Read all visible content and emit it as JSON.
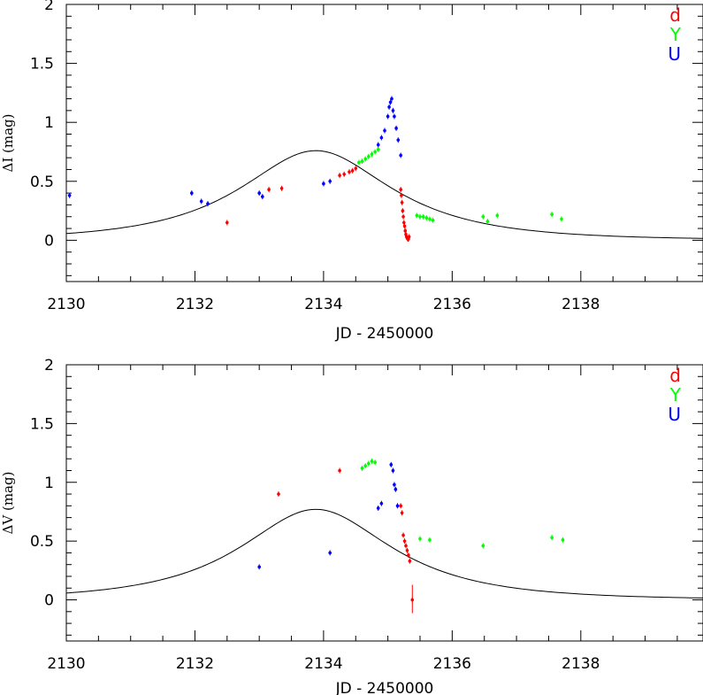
{
  "colors": {
    "d": "#ff0000",
    "Y": "#00ff00",
    "U": "#0000ff",
    "model": "#000000"
  },
  "chart_data": [
    {
      "type": "scatter",
      "xlabel": "JD - 2450000",
      "ylabel": "ΔI (mag)",
      "xlim": [
        2130,
        2139.9
      ],
      "ylim": [
        -0.35,
        2
      ],
      "xticks": [
        "2130",
        "2132",
        "2134",
        "2136",
        "2138"
      ],
      "yticks": [
        "0",
        "0.5",
        "1",
        "1.5",
        "2"
      ],
      "legend": {
        "position": "top-right",
        "entries": [
          "d",
          "Y",
          "U"
        ]
      },
      "model_curve": {
        "peak_x": 2133.88,
        "peak_y": 0.76,
        "tE": 2.0,
        "u0": 0.66
      },
      "series": [
        {
          "name": "d",
          "points": [
            [
              2132.5,
              0.15
            ],
            [
              2133.15,
              0.43
            ],
            [
              2133.35,
              0.44
            ],
            [
              2134.25,
              0.55
            ],
            [
              2134.32,
              0.56
            ],
            [
              2134.4,
              0.58
            ],
            [
              2134.45,
              0.59
            ],
            [
              2134.5,
              0.61
            ],
            [
              2135.2,
              0.43
            ],
            [
              2135.21,
              0.38
            ],
            [
              2135.22,
              0.32
            ],
            [
              2135.23,
              0.25
            ],
            [
              2135.24,
              0.2
            ],
            [
              2135.25,
              0.15
            ],
            [
              2135.26,
              0.12
            ],
            [
              2135.27,
              0.08
            ],
            [
              2135.28,
              0.05
            ],
            [
              2135.29,
              0.03
            ],
            [
              2135.3,
              0.02
            ],
            [
              2135.31,
              0.01
            ],
            [
              2135.32,
              0.01
            ],
            [
              2135.33,
              0.03
            ]
          ]
        },
        {
          "name": "Y",
          "points": [
            [
              2134.55,
              0.66
            ],
            [
              2134.6,
              0.67
            ],
            [
              2134.65,
              0.69
            ],
            [
              2134.7,
              0.71
            ],
            [
              2134.75,
              0.73
            ],
            [
              2134.8,
              0.75
            ],
            [
              2134.85,
              0.77
            ],
            [
              2135.45,
              0.21
            ],
            [
              2135.5,
              0.2
            ],
            [
              2135.55,
              0.2
            ],
            [
              2135.6,
              0.19
            ],
            [
              2135.65,
              0.18
            ],
            [
              2135.7,
              0.17
            ],
            [
              2136.48,
              0.2
            ],
            [
              2136.55,
              0.16
            ],
            [
              2136.7,
              0.21
            ],
            [
              2137.55,
              0.22
            ],
            [
              2137.7,
              0.18
            ]
          ]
        },
        {
          "name": "U",
          "points": [
            [
              2130.05,
              0.38
            ],
            [
              2131.95,
              0.4
            ],
            [
              2132.1,
              0.33
            ],
            [
              2132.2,
              0.31
            ],
            [
              2133.0,
              0.4
            ],
            [
              2133.05,
              0.37
            ],
            [
              2134.0,
              0.48
            ],
            [
              2134.1,
              0.5
            ],
            [
              2134.85,
              0.81
            ],
            [
              2134.9,
              0.87
            ],
            [
              2134.95,
              0.93
            ],
            [
              2135.0,
              1.05
            ],
            [
              2135.02,
              1.13
            ],
            [
              2135.04,
              1.17
            ],
            [
              2135.06,
              1.2
            ],
            [
              2135.08,
              1.1
            ],
            [
              2135.1,
              1.05
            ],
            [
              2135.13,
              0.95
            ],
            [
              2135.16,
              0.85
            ],
            [
              2135.2,
              0.72
            ]
          ]
        }
      ]
    },
    {
      "type": "scatter",
      "xlabel": "JD - 2450000",
      "ylabel": "ΔV (mag)",
      "xlim": [
        2130,
        2139.9
      ],
      "ylim": [
        -0.35,
        2
      ],
      "xticks": [
        "2130",
        "2132",
        "2134",
        "2136",
        "2138"
      ],
      "yticks": [
        "0",
        "0.5",
        "1",
        "1.5",
        "2"
      ],
      "legend": {
        "position": "top-right",
        "entries": [
          "d",
          "Y",
          "U"
        ]
      },
      "model_curve": {
        "peak_x": 2133.88,
        "peak_y": 0.77,
        "tE": 2.0,
        "u0": 0.66
      },
      "series": [
        {
          "name": "d",
          "points": [
            [
              2133.3,
              0.9
            ],
            [
              2134.25,
              1.1
            ],
            [
              2135.2,
              0.8
            ],
            [
              2135.22,
              0.74
            ],
            [
              2135.24,
              0.55
            ],
            [
              2135.26,
              0.5
            ],
            [
              2135.28,
              0.46
            ],
            [
              2135.3,
              0.42
            ],
            [
              2135.32,
              0.38
            ],
            [
              2135.34,
              0.33
            ],
            [
              2135.38,
              0.0
            ]
          ]
        },
        {
          "name": "Y",
          "points": [
            [
              2134.6,
              1.12
            ],
            [
              2134.65,
              1.14
            ],
            [
              2134.7,
              1.16
            ],
            [
              2134.75,
              1.18
            ],
            [
              2134.8,
              1.17
            ],
            [
              2135.5,
              0.52
            ],
            [
              2135.65,
              0.51
            ],
            [
              2136.48,
              0.46
            ],
            [
              2137.55,
              0.53
            ],
            [
              2137.72,
              0.51
            ]
          ]
        },
        {
          "name": "U",
          "points": [
            [
              2133.0,
              0.28
            ],
            [
              2134.1,
              0.4
            ],
            [
              2134.85,
              0.78
            ],
            [
              2134.9,
              0.82
            ],
            [
              2135.05,
              1.15
            ],
            [
              2135.08,
              1.1
            ],
            [
              2135.1,
              0.98
            ],
            [
              2135.12,
              0.94
            ],
            [
              2135.15,
              0.8
            ]
          ]
        }
      ]
    }
  ]
}
